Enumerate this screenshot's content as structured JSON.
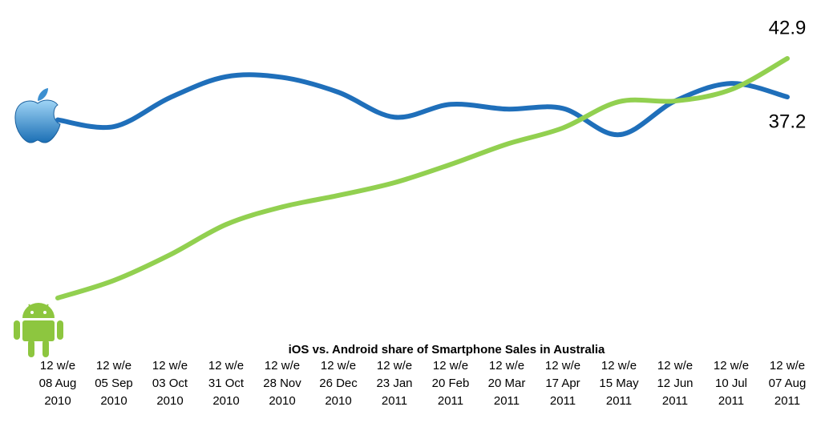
{
  "chart_data": {
    "type": "line",
    "title": "iOS vs. Android share of Smartphone Sales in Australia",
    "categories": [
      [
        "12 w/e",
        "08 Aug",
        "2010"
      ],
      [
        "12 w/e",
        "05 Sep",
        "2010"
      ],
      [
        "12 w/e",
        "03 Oct",
        "2010"
      ],
      [
        "12 w/e",
        "31 Oct",
        "2010"
      ],
      [
        "12 w/e",
        "28 Nov",
        "2010"
      ],
      [
        "12 w/e",
        "26 Dec",
        "2010"
      ],
      [
        "12 w/e",
        "23 Jan",
        "2011"
      ],
      [
        "12 w/e",
        "20 Feb",
        "2011"
      ],
      [
        "12 w/e",
        "20 Mar",
        "2011"
      ],
      [
        "12 w/e",
        "17 Apr",
        "2011"
      ],
      [
        "12 w/e",
        "15 May",
        "2011"
      ],
      [
        "12 w/e",
        "12 Jun",
        "2011"
      ],
      [
        "12 w/e",
        "10 Jul",
        "2011"
      ],
      [
        "12 w/e",
        "07 Aug",
        "2011"
      ]
    ],
    "series": [
      {
        "color": "#1f6fba",
        "values": [
          33.8,
          32.8,
          37.1,
          40.2,
          40.1,
          37.9,
          34.2,
          36.1,
          35.4,
          35.5,
          31.6,
          36.6,
          39.2,
          37.2
        ]
      },
      {
        "color": "#92d050",
        "values": [
          7.4,
          10.0,
          13.8,
          18.3,
          20.9,
          22.6,
          24.5,
          27.2,
          30.2,
          32.6,
          36.5,
          36.6,
          38.3,
          42.9
        ]
      }
    ]
  }
}
